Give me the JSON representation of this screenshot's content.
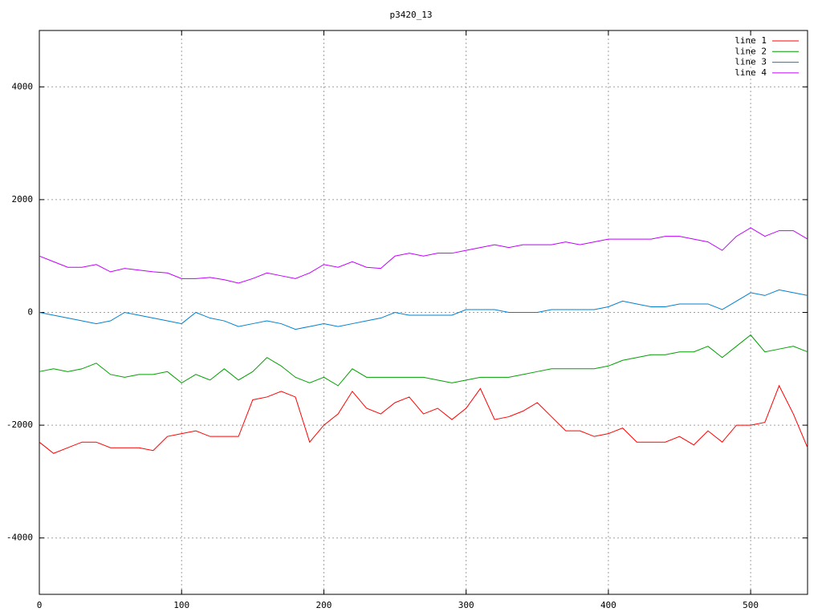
{
  "chart_data": {
    "type": "line",
    "title": "p3420_13",
    "x": [
      0,
      10,
      20,
      30,
      40,
      50,
      60,
      70,
      80,
      90,
      100,
      110,
      120,
      130,
      140,
      150,
      160,
      170,
      180,
      190,
      200,
      210,
      220,
      230,
      240,
      250,
      260,
      270,
      280,
      290,
      300,
      310,
      320,
      330,
      340,
      350,
      360,
      370,
      380,
      390,
      400,
      410,
      420,
      430,
      440,
      450,
      460,
      470,
      480,
      490,
      500,
      510,
      520,
      530,
      540
    ],
    "series": [
      {
        "name": "line 1",
        "color": "#ff0000",
        "values": [
          -2300,
          -2500,
          -2400,
          -2300,
          -2300,
          -2400,
          -2400,
          -2400,
          -2450,
          -2200,
          -2150,
          -2100,
          -2200,
          -2200,
          -2200,
          -1550,
          -1500,
          -1400,
          -1500,
          -2300,
          -2000,
          -1800,
          -1400,
          -1700,
          -1800,
          -1600,
          -1500,
          -1800,
          -1700,
          -1900,
          -1700,
          -1350,
          -1900,
          -1850,
          -1750,
          -1600,
          -1850,
          -2100,
          -2100,
          -2200,
          -2150,
          -2050,
          -2300,
          -2300,
          -2300,
          -2200,
          -2350,
          -2100,
          -2300,
          -2000,
          -2000,
          -1950,
          -1300,
          -1800,
          -2400
        ]
      },
      {
        "name": "line 2",
        "color": "#00a000",
        "values": [
          -1050,
          -1000,
          -1050,
          -1000,
          -900,
          -1100,
          -1150,
          -1100,
          -1100,
          -1050,
          -1250,
          -1100,
          -1200,
          -1000,
          -1200,
          -1050,
          -800,
          -950,
          -1150,
          -1250,
          -1150,
          -1300,
          -1000,
          -1150,
          -1150,
          -1150,
          -1150,
          -1150,
          -1200,
          -1250,
          -1200,
          -1150,
          -1150,
          -1150,
          -1100,
          -1050,
          -1000,
          -1000,
          -1000,
          -1000,
          -950,
          -850,
          -800,
          -750,
          -750,
          -700,
          -700,
          -600,
          -800,
          -600,
          -400,
          -700,
          -650,
          -600,
          -700
        ]
      },
      {
        "name": "line 3",
        "color": "#0080d0",
        "values": [
          0,
          -50,
          -100,
          -150,
          -200,
          -150,
          0,
          -50,
          -100,
          -150,
          -200,
          0,
          -100,
          -150,
          -250,
          -200,
          -150,
          -200,
          -300,
          -250,
          -200,
          -250,
          -200,
          -150,
          -100,
          0,
          -50,
          -50,
          -50,
          -50,
          50,
          50,
          50,
          0,
          0,
          0,
          50,
          50,
          50,
          50,
          100,
          200,
          150,
          100,
          100,
          150,
          150,
          150,
          50,
          200,
          350,
          300,
          400,
          350,
          300
        ]
      },
      {
        "name": "line 4",
        "color": "#c000ff",
        "values": [
          1000,
          900,
          800,
          800,
          850,
          720,
          780,
          750,
          720,
          700,
          600,
          600,
          620,
          580,
          520,
          600,
          700,
          650,
          600,
          700,
          850,
          800,
          900,
          800,
          780,
          1000,
          1050,
          1000,
          1050,
          1050,
          1100,
          1150,
          1200,
          1150,
          1200,
          1200,
          1200,
          1250,
          1200,
          1250,
          1300,
          1300,
          1300,
          1300,
          1350,
          1350,
          1300,
          1250,
          1100,
          1350,
          1500,
          1350,
          1450,
          1450,
          1300
        ]
      }
    ],
    "xlim": [
      0,
      540
    ],
    "xticks": [
      0,
      100,
      200,
      300,
      400,
      500
    ],
    "ylim": [
      -5000,
      5000
    ],
    "yticks": [
      -4000,
      -2000,
      0,
      2000,
      4000
    ],
    "grid": true,
    "legend": "top-right"
  }
}
